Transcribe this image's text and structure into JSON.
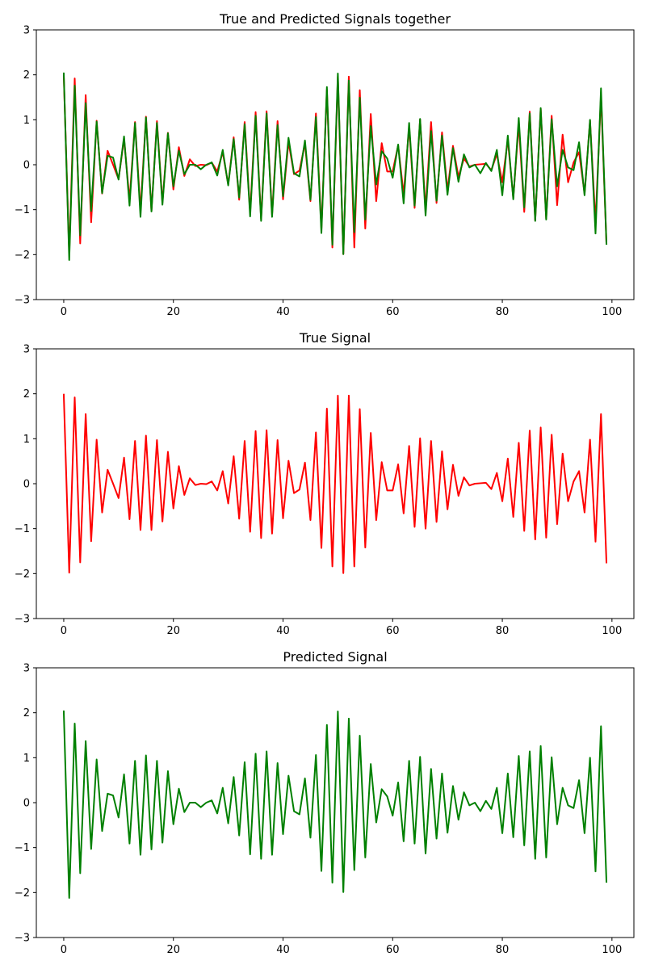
{
  "figure": {
    "background": "#ffffff"
  },
  "chart_data": [
    {
      "type": "line",
      "title": "True and Predicted Signals together",
      "xlabel": "",
      "ylabel": "",
      "xlim": [
        -5,
        104
      ],
      "ylim": [
        -3,
        3
      ],
      "xticks": [
        0,
        20,
        40,
        60,
        80,
        100
      ],
      "yticks": [
        -3,
        -2,
        -1,
        0,
        1,
        2,
        3
      ],
      "grid": false,
      "legend": "none",
      "series": [
        {
          "color": "#ff0000",
          "x": [
            0,
            1,
            2,
            3,
            4,
            5,
            6,
            7,
            8,
            9,
            10,
            11,
            12,
            13,
            14,
            15,
            16,
            17,
            18,
            19,
            20,
            21,
            22,
            23,
            24,
            25,
            26,
            27,
            28,
            29,
            30,
            31,
            32,
            33,
            34,
            35,
            36,
            37,
            38,
            39,
            40,
            41,
            42,
            43,
            44,
            45,
            46,
            47,
            48,
            49,
            50,
            51,
            52,
            53,
            54,
            55,
            56,
            57,
            58,
            59,
            60,
            61,
            62,
            63,
            64,
            65,
            66,
            67,
            68,
            69,
            70,
            71,
            72,
            73,
            74,
            75,
            76,
            77,
            78,
            79,
            80,
            81,
            82,
            83,
            84,
            85,
            86,
            87,
            88,
            89,
            90,
            91,
            92,
            93,
            94,
            95,
            96,
            97,
            98,
            99
          ],
          "y": [
            2.0,
            -1.98,
            1.92,
            -1.75,
            1.55,
            -1.28,
            0.98,
            -0.64,
            0.31,
            0.0,
            -0.32,
            0.58,
            -0.79,
            0.95,
            -1.03,
            1.07,
            -1.03,
            0.97,
            -0.84,
            0.71,
            -0.55,
            0.39,
            -0.25,
            0.12,
            -0.03,
            0.0,
            -0.01,
            0.05,
            -0.15,
            0.28,
            -0.44,
            0.61,
            -0.78,
            0.95,
            -1.07,
            1.17,
            -1.21,
            1.19,
            -1.11,
            0.97,
            -0.77,
            0.51,
            -0.21,
            -0.13,
            0.47,
            -0.81,
            1.14,
            -1.43,
            1.67,
            -1.84,
            1.96,
            -1.99,
            1.96,
            -1.84,
            1.66,
            -1.42,
            1.13,
            -0.81,
            0.48,
            -0.15,
            -0.15,
            0.43,
            -0.66,
            0.84,
            -0.96,
            1.01,
            -1.0,
            0.95,
            -0.85,
            0.72,
            -0.57,
            0.42,
            -0.27,
            0.14,
            -0.04,
            0.0,
            0.01,
            0.02,
            -0.12,
            0.24,
            -0.39,
            0.56,
            -0.74,
            0.91,
            -1.05,
            1.18,
            -1.24,
            1.25,
            -1.2,
            1.09,
            -0.9,
            0.67,
            -0.39,
            0.05,
            0.28,
            -0.64,
            0.98,
            -1.29,
            1.55,
            -1.77
          ]
        },
        {
          "color": "#008000",
          "x": [
            0,
            1,
            2,
            3,
            4,
            5,
            6,
            7,
            8,
            9,
            10,
            11,
            12,
            13,
            14,
            15,
            16,
            17,
            18,
            19,
            20,
            21,
            22,
            23,
            24,
            25,
            26,
            27,
            28,
            29,
            30,
            31,
            32,
            33,
            34,
            35,
            36,
            37,
            38,
            39,
            40,
            41,
            42,
            43,
            44,
            45,
            46,
            47,
            48,
            49,
            50,
            51,
            52,
            53,
            54,
            55,
            56,
            57,
            58,
            59,
            60,
            61,
            62,
            63,
            64,
            65,
            66,
            67,
            68,
            69,
            70,
            71,
            72,
            73,
            74,
            75,
            76,
            77,
            78,
            79,
            80,
            81,
            82,
            83,
            84,
            85,
            86,
            87,
            88,
            89,
            90,
            91,
            92,
            93,
            94,
            95,
            96,
            97,
            98,
            99
          ],
          "y": [
            2.05,
            -2.12,
            1.76,
            -1.57,
            1.37,
            -1.03,
            0.96,
            -0.63,
            0.2,
            0.16,
            -0.33,
            0.63,
            -0.91,
            0.93,
            -1.16,
            1.05,
            -1.04,
            0.93,
            -0.89,
            0.7,
            -0.48,
            0.31,
            -0.21,
            0.0,
            0.0,
            -0.1,
            0.0,
            0.05,
            -0.24,
            0.33,
            -0.46,
            0.57,
            -0.73,
            0.9,
            -1.15,
            1.09,
            -1.25,
            1.14,
            -1.16,
            0.88,
            -0.7,
            0.6,
            -0.19,
            -0.26,
            0.54,
            -0.78,
            1.06,
            -1.52,
            1.73,
            -1.78,
            2.03,
            -1.99,
            1.87,
            -1.5,
            1.49,
            -1.22,
            0.86,
            -0.44,
            0.3,
            0.14,
            -0.29,
            0.45,
            -0.86,
            0.93,
            -0.91,
            1.02,
            -1.13,
            0.75,
            -0.8,
            0.65,
            -0.67,
            0.37,
            -0.38,
            0.23,
            -0.06,
            0.0,
            -0.19,
            0.04,
            -0.14,
            0.33,
            -0.68,
            0.65,
            -0.77,
            1.04,
            -0.95,
            1.14,
            -1.25,
            1.26,
            -1.22,
            1.01,
            -0.48,
            0.33,
            -0.06,
            -0.12,
            0.5,
            -0.68,
            1.0,
            -1.53,
            1.7,
            -1.78
          ]
        }
      ]
    },
    {
      "type": "line",
      "title": "True Signal",
      "xlabel": "",
      "ylabel": "",
      "xlim": [
        -5,
        104
      ],
      "ylim": [
        -3,
        3
      ],
      "xticks": [
        0,
        20,
        40,
        60,
        80,
        100
      ],
      "yticks": [
        -3,
        -2,
        -1,
        0,
        1,
        2,
        3
      ],
      "grid": false,
      "legend": "none",
      "series": [
        {
          "color": "#ff0000",
          "x": [
            0,
            1,
            2,
            3,
            4,
            5,
            6,
            7,
            8,
            9,
            10,
            11,
            12,
            13,
            14,
            15,
            16,
            17,
            18,
            19,
            20,
            21,
            22,
            23,
            24,
            25,
            26,
            27,
            28,
            29,
            30,
            31,
            32,
            33,
            34,
            35,
            36,
            37,
            38,
            39,
            40,
            41,
            42,
            43,
            44,
            45,
            46,
            47,
            48,
            49,
            50,
            51,
            52,
            53,
            54,
            55,
            56,
            57,
            58,
            59,
            60,
            61,
            62,
            63,
            64,
            65,
            66,
            67,
            68,
            69,
            70,
            71,
            72,
            73,
            74,
            75,
            76,
            77,
            78,
            79,
            80,
            81,
            82,
            83,
            84,
            85,
            86,
            87,
            88,
            89,
            90,
            91,
            92,
            93,
            94,
            95,
            96,
            97,
            98,
            99
          ],
          "y": [
            2.0,
            -1.98,
            1.92,
            -1.75,
            1.55,
            -1.28,
            0.98,
            -0.64,
            0.31,
            0.0,
            -0.32,
            0.58,
            -0.79,
            0.95,
            -1.03,
            1.07,
            -1.03,
            0.97,
            -0.84,
            0.71,
            -0.55,
            0.39,
            -0.25,
            0.12,
            -0.03,
            0.0,
            -0.01,
            0.05,
            -0.15,
            0.28,
            -0.44,
            0.61,
            -0.78,
            0.95,
            -1.07,
            1.17,
            -1.21,
            1.19,
            -1.11,
            0.97,
            -0.77,
            0.51,
            -0.21,
            -0.13,
            0.47,
            -0.81,
            1.14,
            -1.43,
            1.67,
            -1.84,
            1.96,
            -1.99,
            1.96,
            -1.84,
            1.66,
            -1.42,
            1.13,
            -0.81,
            0.48,
            -0.15,
            -0.15,
            0.43,
            -0.66,
            0.84,
            -0.96,
            1.01,
            -1.0,
            0.95,
            -0.85,
            0.72,
            -0.57,
            0.42,
            -0.27,
            0.14,
            -0.04,
            0.0,
            0.01,
            0.02,
            -0.12,
            0.24,
            -0.39,
            0.56,
            -0.74,
            0.91,
            -1.05,
            1.18,
            -1.24,
            1.25,
            -1.2,
            1.09,
            -0.9,
            0.67,
            -0.39,
            0.05,
            0.28,
            -0.64,
            0.98,
            -1.29,
            1.55,
            -1.77
          ]
        }
      ]
    },
    {
      "type": "line",
      "title": "Predicted Signal",
      "xlabel": "",
      "ylabel": "",
      "xlim": [
        -5,
        104
      ],
      "ylim": [
        -3,
        3
      ],
      "xticks": [
        0,
        20,
        40,
        60,
        80,
        100
      ],
      "yticks": [
        -3,
        -2,
        -1,
        0,
        1,
        2,
        3
      ],
      "grid": false,
      "legend": "none",
      "series": [
        {
          "color": "#008000",
          "x": [
            0,
            1,
            2,
            3,
            4,
            5,
            6,
            7,
            8,
            9,
            10,
            11,
            12,
            13,
            14,
            15,
            16,
            17,
            18,
            19,
            20,
            21,
            22,
            23,
            24,
            25,
            26,
            27,
            28,
            29,
            30,
            31,
            32,
            33,
            34,
            35,
            36,
            37,
            38,
            39,
            40,
            41,
            42,
            43,
            44,
            45,
            46,
            47,
            48,
            49,
            50,
            51,
            52,
            53,
            54,
            55,
            56,
            57,
            58,
            59,
            60,
            61,
            62,
            63,
            64,
            65,
            66,
            67,
            68,
            69,
            70,
            71,
            72,
            73,
            74,
            75,
            76,
            77,
            78,
            79,
            80,
            81,
            82,
            83,
            84,
            85,
            86,
            87,
            88,
            89,
            90,
            91,
            92,
            93,
            94,
            95,
            96,
            97,
            98,
            99
          ],
          "y": [
            2.05,
            -2.12,
            1.76,
            -1.57,
            1.37,
            -1.03,
            0.96,
            -0.63,
            0.2,
            0.16,
            -0.33,
            0.63,
            -0.91,
            0.93,
            -1.16,
            1.05,
            -1.04,
            0.93,
            -0.89,
            0.7,
            -0.48,
            0.31,
            -0.21,
            0.0,
            0.0,
            -0.1,
            0.0,
            0.05,
            -0.24,
            0.33,
            -0.46,
            0.57,
            -0.73,
            0.9,
            -1.15,
            1.09,
            -1.25,
            1.14,
            -1.16,
            0.88,
            -0.7,
            0.6,
            -0.19,
            -0.26,
            0.54,
            -0.78,
            1.06,
            -1.52,
            1.73,
            -1.78,
            2.03,
            -1.99,
            1.87,
            -1.5,
            1.49,
            -1.22,
            0.86,
            -0.44,
            0.3,
            0.14,
            -0.29,
            0.45,
            -0.86,
            0.93,
            -0.91,
            1.02,
            -1.13,
            0.75,
            -0.8,
            0.65,
            -0.67,
            0.37,
            -0.38,
            0.23,
            -0.06,
            0.0,
            -0.19,
            0.04,
            -0.14,
            0.33,
            -0.68,
            0.65,
            -0.77,
            1.04,
            -0.95,
            1.14,
            -1.25,
            1.26,
            -1.22,
            1.01,
            -0.48,
            0.33,
            -0.06,
            -0.12,
            0.5,
            -0.68,
            1.0,
            -1.53,
            1.7,
            -1.78
          ]
        }
      ]
    }
  ]
}
